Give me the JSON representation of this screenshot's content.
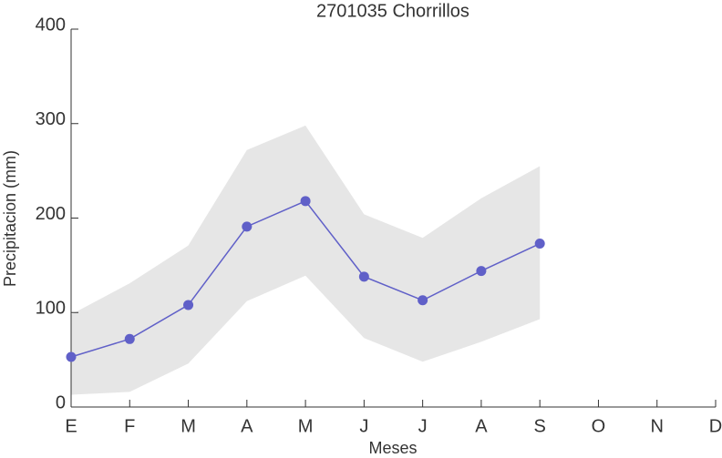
{
  "chart_data": {
    "type": "line",
    "title": "2701035 Chorrillos",
    "x_label": "Meses",
    "y_label": "Precipitacion (mm)",
    "categories": [
      "E",
      "F",
      "M",
      "A",
      "M",
      "J",
      "J",
      "A",
      "S",
      "O",
      "N",
      "D"
    ],
    "values": [
      53,
      72,
      108,
      191,
      218,
      138,
      113,
      144,
      173,
      null,
      null,
      null
    ],
    "band_upper": [
      98,
      131,
      171,
      272,
      298,
      204,
      179,
      221,
      255,
      null,
      null,
      null
    ],
    "band_lower": [
      13,
      16,
      46,
      112,
      139,
      73,
      48,
      69,
      93,
      null,
      null,
      null
    ],
    "color": "#6060c8",
    "band_color": "#e6e6e6",
    "ylim": [
      0,
      400
    ],
    "yticks": [
      0,
      100,
      200,
      300,
      400
    ]
  }
}
